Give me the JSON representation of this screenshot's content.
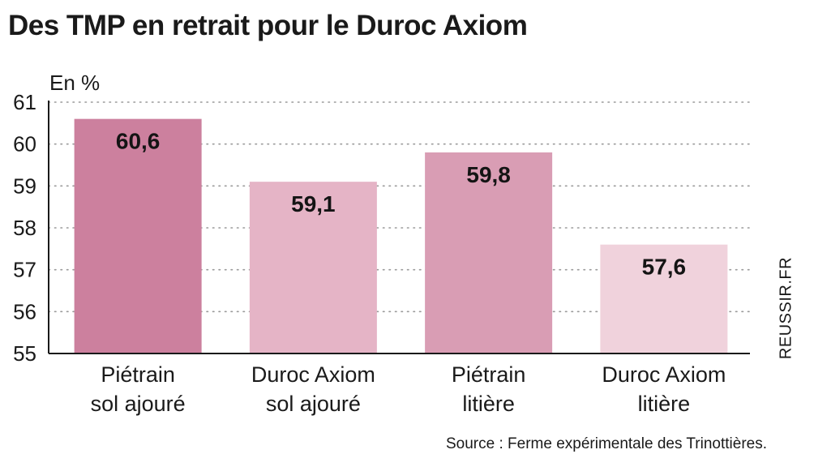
{
  "title": "Des TMP en retrait pour le Duroc Axiom",
  "side_credit": "REUSSIR.FR",
  "source": "Source : Ferme expérimentale des Trinottières.",
  "chart_data": {
    "type": "bar",
    "ylabel": "En %",
    "ylim": [
      55,
      61
    ],
    "yticks": [
      55,
      56,
      57,
      58,
      59,
      60,
      61
    ],
    "grid": true,
    "categories": [
      [
        "Piétrain",
        "sol ajouré"
      ],
      [
        "Duroc Axiom",
        "sol ajouré"
      ],
      [
        "Piétrain",
        "litière"
      ],
      [
        "Duroc Axiom",
        "litière"
      ]
    ],
    "values": [
      60.6,
      59.1,
      59.8,
      57.6
    ],
    "value_labels": [
      "60,6",
      "59,1",
      "59,8",
      "57,6"
    ],
    "colors": [
      "#cc809e",
      "#e5b4c6",
      "#d99db4",
      "#f0d2dc"
    ]
  }
}
